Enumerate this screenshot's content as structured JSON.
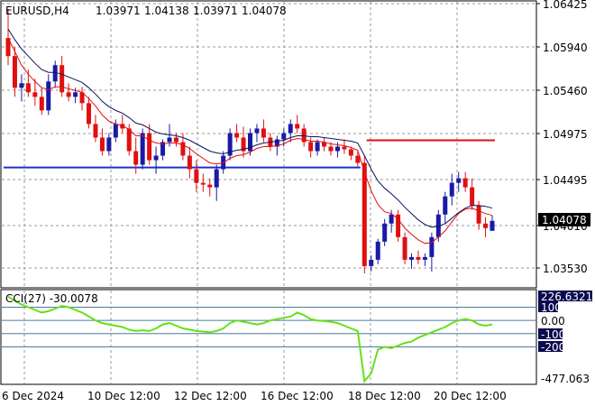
{
  "header": {
    "symbol": "EURUSD,H4",
    "open": "1.03971",
    "high": "1.04138",
    "low": "1.03971",
    "close": "1.04078"
  },
  "price_axis": {
    "ticks": [
      "1.06425",
      "1.05940",
      "1.05460",
      "1.04975",
      "1.04495",
      "1.04010",
      "1.03530"
    ],
    "current_price": "1.04078"
  },
  "cci_panel": {
    "label": "CCI(27) -30.0078",
    "ticks": [
      "226.6321",
      "100",
      "0.00",
      "-100",
      "-200",
      "-477.063"
    ]
  },
  "time_axis": {
    "labels": [
      "6 Dec 2024",
      "10 Dec 12:00",
      "12 Dec 12:00",
      "16 Dec 12:00",
      "18 Dec 12:00",
      "20 Dec 12:00"
    ]
  },
  "colors": {
    "bull": "#1a1aa6",
    "bear": "#e01010",
    "ma_fast": "#e01010",
    "ma_slow": "#101060",
    "support_line": "#1a33cc",
    "resistance_line": "#e01010",
    "cci_line": "#66e01a",
    "cci_levels": "#4a7ba0",
    "label_box": "#0a0a50"
  },
  "chart_data": {
    "type": "candlestick",
    "ylim": [
      1.0335,
      1.065
    ],
    "candles": [
      [
        1.061,
        1.0642,
        1.058,
        1.059
      ],
      [
        1.059,
        1.06,
        1.0545,
        1.0555
      ],
      [
        1.0555,
        1.057,
        1.054,
        1.056
      ],
      [
        1.056,
        1.0575,
        1.0545,
        1.055
      ],
      [
        1.055,
        1.0565,
        1.0535,
        1.0545
      ],
      [
        1.0545,
        1.0555,
        1.0525,
        1.053
      ],
      [
        1.053,
        1.057,
        1.0525,
        1.0562
      ],
      [
        1.0562,
        1.0585,
        1.0555,
        1.058
      ],
      [
        1.058,
        1.059,
        1.0545,
        1.055
      ],
      [
        1.055,
        1.056,
        1.054,
        1.0545
      ],
      [
        1.0545,
        1.0555,
        1.0538,
        1.055
      ],
      [
        1.055,
        1.0556,
        1.053,
        1.0538
      ],
      [
        1.0538,
        1.0545,
        1.051,
        1.0515
      ],
      [
        1.0515,
        1.0525,
        1.0495,
        1.05
      ],
      [
        1.05,
        1.051,
        1.048,
        1.0485
      ],
      [
        1.0485,
        1.0505,
        1.048,
        1.05
      ],
      [
        1.05,
        1.052,
        1.0495,
        1.0515
      ],
      [
        1.0515,
        1.0525,
        1.0505,
        1.051
      ],
      [
        1.051,
        1.0515,
        1.048,
        1.0485
      ],
      [
        1.0485,
        1.05,
        1.046,
        1.047
      ],
      [
        1.047,
        1.051,
        1.0465,
        1.0505
      ],
      [
        1.0505,
        1.0515,
        1.047,
        1.0475
      ],
      [
        1.0475,
        1.049,
        1.046,
        1.048
      ],
      [
        1.048,
        1.0498,
        1.0475,
        1.0495
      ],
      [
        1.0495,
        1.0515,
        1.049,
        1.05
      ],
      [
        1.05,
        1.0505,
        1.049,
        1.0495
      ],
      [
        1.0495,
        1.0505,
        1.0475,
        1.048
      ],
      [
        1.048,
        1.049,
        1.0455,
        1.0465
      ],
      [
        1.0465,
        1.0475,
        1.044,
        1.045
      ],
      [
        1.045,
        1.046,
        1.044,
        1.0448
      ],
      [
        1.0448,
        1.0455,
        1.0435,
        1.0445
      ],
      [
        1.0445,
        1.047,
        1.043,
        1.0465
      ],
      [
        1.0465,
        1.0485,
        1.046,
        1.048
      ],
      [
        1.048,
        1.051,
        1.0475,
        1.0505
      ],
      [
        1.0505,
        1.0515,
        1.0495,
        1.05
      ],
      [
        1.05,
        1.0512,
        1.0478,
        1.0485
      ],
      [
        1.0485,
        1.051,
        1.048,
        1.0505
      ],
      [
        1.0505,
        1.0515,
        1.0495,
        1.051
      ],
      [
        1.051,
        1.052,
        1.0495,
        1.05
      ],
      [
        1.05,
        1.0505,
        1.0485,
        1.049
      ],
      [
        1.049,
        1.0502,
        1.048,
        1.0498
      ],
      [
        1.0498,
        1.051,
        1.049,
        1.0505
      ],
      [
        1.0505,
        1.052,
        1.0495,
        1.0515
      ],
      [
        1.0515,
        1.0525,
        1.0505,
        1.051
      ],
      [
        1.051,
        1.0515,
        1.049,
        1.0495
      ],
      [
        1.0495,
        1.05,
        1.0478,
        1.0485
      ],
      [
        1.0485,
        1.0498,
        1.048,
        1.0495
      ],
      [
        1.0495,
        1.05,
        1.0485,
        1.049
      ],
      [
        1.049,
        1.0495,
        1.048,
        1.0485
      ],
      [
        1.0485,
        1.0495,
        1.0478,
        1.049
      ],
      [
        1.049,
        1.0498,
        1.0482,
        1.0487
      ],
      [
        1.0487,
        1.049,
        1.0475,
        1.048
      ],
      [
        1.048,
        1.0485,
        1.0468,
        1.0472
      ],
      [
        1.0472,
        1.048,
        1.035,
        1.0358
      ],
      [
        1.0358,
        1.037,
        1.0352,
        1.0365
      ],
      [
        1.0365,
        1.0388,
        1.036,
        1.0385
      ],
      [
        1.0385,
        1.041,
        1.038,
        1.0405
      ],
      [
        1.0405,
        1.042,
        1.0395,
        1.0415
      ],
      [
        1.0415,
        1.042,
        1.0385,
        1.039
      ],
      [
        1.039,
        1.0395,
        1.036,
        1.0365
      ],
      [
        1.0365,
        1.0372,
        1.0355,
        1.0368
      ],
      [
        1.0368,
        1.0375,
        1.036,
        1.0365
      ],
      [
        1.0365,
        1.0372,
        1.0358,
        1.0368
      ],
      [
        1.0368,
        1.0395,
        1.0352,
        1.039
      ],
      [
        1.039,
        1.042,
        1.0385,
        1.0415
      ],
      [
        1.0415,
        1.044,
        1.0405,
        1.0435
      ],
      [
        1.0435,
        1.046,
        1.0425,
        1.045
      ],
      [
        1.045,
        1.0462,
        1.044,
        1.0455
      ],
      [
        1.0455,
        1.0462,
        1.044,
        1.0445
      ],
      [
        1.0445,
        1.0455,
        1.042,
        1.0425
      ],
      [
        1.0425,
        1.043,
        1.0398,
        1.0405
      ],
      [
        1.0405,
        1.0412,
        1.039,
        1.04
      ],
      [
        1.0397,
        1.0414,
        1.0397,
        1.0408
      ]
    ],
    "ma_fast": [
      1.061,
      1.0595,
      1.058,
      1.057,
      1.0562,
      1.0555,
      1.0553,
      1.0556,
      1.0556,
      1.0554,
      1.0552,
      1.055,
      1.0543,
      1.0535,
      1.0525,
      1.0518,
      1.0515,
      1.0513,
      1.0509,
      1.0502,
      1.0502,
      1.0497,
      1.0494,
      1.0493,
      1.0494,
      1.0494,
      1.0492,
      1.0488,
      1.0482,
      1.0477,
      1.0472,
      1.0471,
      1.0472,
      1.0477,
      1.048,
      1.0481,
      1.0484,
      1.0488,
      1.049,
      1.049,
      1.0491,
      1.0493,
      1.0497,
      1.0499,
      1.0498,
      1.0496,
      1.0496,
      1.0495,
      1.0493,
      1.0492,
      1.0491,
      1.0489,
      1.0486,
      1.0462,
      1.0441,
      1.0426,
      1.0418,
      1.0416,
      1.041,
      1.04,
      1.0393,
      1.0387,
      1.0383,
      1.0384,
      1.039,
      1.0397,
      1.0407,
      1.0416,
      1.0421,
      1.0422,
      1.0419,
      1.0416,
      1.0414
    ],
    "ma_slow": [
      1.062,
      1.0608,
      1.0598,
      1.059,
      1.0582,
      1.0575,
      1.0572,
      1.0572,
      1.057,
      1.0567,
      1.0564,
      1.0561,
      1.0555,
      1.0548,
      1.054,
      1.0534,
      1.053,
      1.0527,
      1.0522,
      1.0516,
      1.0514,
      1.051,
      1.0506,
      1.0504,
      1.0503,
      1.0502,
      1.05,
      1.0497,
      1.0493,
      1.0489,
      1.0485,
      1.0483,
      1.0482,
      1.0484,
      1.0486,
      1.0487,
      1.0489,
      1.0492,
      1.0494,
      1.0495,
      1.0496,
      1.0497,
      1.05,
      1.0502,
      1.0502,
      1.0501,
      1.0501,
      1.05,
      1.0499,
      1.0498,
      1.0497,
      1.0496,
      1.0494,
      1.048,
      1.0465,
      1.0452,
      1.0444,
      1.0438,
      1.0431,
      1.0423,
      1.0416,
      1.0409,
      1.0404,
      1.0401,
      1.0402,
      1.0405,
      1.0411,
      1.0417,
      1.0422,
      1.0425,
      1.0425,
      1.0424,
      1.0422
    ],
    "horizontal_lines": [
      {
        "price": 1.0467,
        "from_index": 0,
        "to_index": 52,
        "color": "support"
      },
      {
        "price": 1.0497,
        "from_index": 54,
        "to_index": 72,
        "color": "resistance"
      }
    ],
    "cci": {
      "ylim": [
        -477.063,
        226.6321
      ],
      "levels": [
        100,
        0,
        -100,
        -200
      ],
      "values": [
        180,
        150,
        120,
        100,
        80,
        60,
        70,
        90,
        110,
        100,
        80,
        60,
        30,
        0,
        -20,
        -30,
        -40,
        -50,
        -70,
        -80,
        -75,
        -80,
        -60,
        -30,
        -20,
        -40,
        -60,
        -70,
        -80,
        -85,
        -90,
        -80,
        -60,
        -20,
        0,
        -10,
        -20,
        -30,
        -20,
        0,
        10,
        20,
        30,
        60,
        40,
        10,
        0,
        -5,
        -10,
        -20,
        -40,
        -60,
        -80,
        -460,
        -400,
        -220,
        -200,
        -210,
        -190,
        -170,
        -160,
        -130,
        -110,
        -90,
        -70,
        -50,
        -20,
        0,
        10,
        0,
        -30,
        -40,
        -30
      ]
    }
  }
}
